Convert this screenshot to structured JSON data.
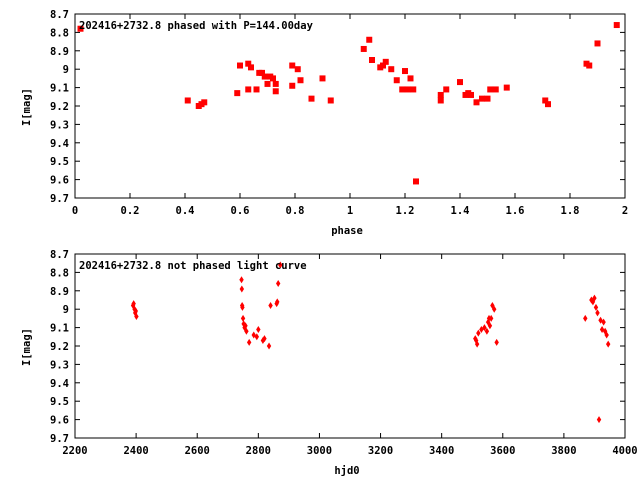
{
  "chart_data": [
    {
      "type": "scatter",
      "title": "202416+2732.8 phased with P=144.00day",
      "xlabel": "phase",
      "ylabel": "I[mag]",
      "xlim": [
        0,
        2
      ],
      "ylim": [
        8.7,
        9.7
      ],
      "y_inverted": true,
      "xticks": [
        "0",
        "0.2",
        "0.4",
        "0.6",
        "0.8",
        "1",
        "1.2",
        "1.4",
        "1.6",
        "1.8",
        "2"
      ],
      "yticks": [
        "8.7",
        "8.8",
        "8.9",
        "9",
        "9.1",
        "9.2",
        "9.3",
        "9.4",
        "9.5",
        "9.6",
        "9.7"
      ],
      "marker_color": "#ff0000",
      "marker": "square",
      "x": [
        0.02,
        0.41,
        0.45,
        0.46,
        0.47,
        0.59,
        0.6,
        0.63,
        0.63,
        0.64,
        0.66,
        0.67,
        0.68,
        0.69,
        0.7,
        0.71,
        0.72,
        0.73,
        0.73,
        0.79,
        0.79,
        0.81,
        0.82,
        0.86,
        0.9,
        0.93,
        1.05,
        1.07,
        1.08,
        1.11,
        1.12,
        1.13,
        1.15,
        1.17,
        1.19,
        1.2,
        1.21,
        1.22,
        1.23,
        1.24,
        1.33,
        1.33,
        1.35,
        1.4,
        1.42,
        1.43,
        1.44,
        1.46,
        1.48,
        1.5,
        1.51,
        1.53,
        1.57,
        1.71,
        1.72,
        1.86,
        1.87,
        1.9,
        1.97
      ],
      "y": [
        8.78,
        9.17,
        9.2,
        9.19,
        9.18,
        9.13,
        8.98,
        9.11,
        8.97,
        8.99,
        9.11,
        9.02,
        9.02,
        9.04,
        9.08,
        9.04,
        9.05,
        9.08,
        9.12,
        8.98,
        9.09,
        9.0,
        9.06,
        9.16,
        9.05,
        9.17,
        8.89,
        8.84,
        8.95,
        8.99,
        8.98,
        8.96,
        9.0,
        9.06,
        9.11,
        9.01,
        9.11,
        9.05,
        9.11,
        9.61,
        9.17,
        9.14,
        9.11,
        9.07,
        9.14,
        9.13,
        9.14,
        9.18,
        9.16,
        9.16,
        9.11,
        9.11,
        9.1,
        9.17,
        9.19,
        8.97,
        8.98,
        8.86,
        8.76
      ]
    },
    {
      "type": "scatter",
      "title": "202416+2732.8 not phased light curve",
      "xlabel": "hjd0",
      "ylabel": "I[mag]",
      "xlim": [
        2200,
        4000
      ],
      "ylim": [
        8.7,
        9.7
      ],
      "y_inverted": true,
      "xticks": [
        "2200",
        "2400",
        "2600",
        "2800",
        "3000",
        "3200",
        "3400",
        "3600",
        "3800",
        "4000"
      ],
      "yticks": [
        "8.7",
        "8.8",
        "8.9",
        "9",
        "9.1",
        "9.2",
        "9.3",
        "9.4",
        "9.5",
        "9.6",
        "9.7"
      ],
      "marker_color": "#ff0000",
      "marker": "diamond",
      "x": [
        2390,
        2392,
        2395,
        2397,
        2399,
        2401,
        2745,
        2746,
        2747,
        2748,
        2750,
        2752,
        2755,
        2758,
        2761,
        2770,
        2785,
        2795,
        2800,
        2815,
        2820,
        2835,
        2840,
        2860,
        2862,
        2865,
        2872,
        3510,
        3513,
        3516,
        3520,
        3530,
        3540,
        3548,
        3552,
        3555,
        3558,
        3562,
        3566,
        3572,
        3580,
        3870,
        3890,
        3895,
        3900,
        3905,
        3910,
        3915,
        3920,
        3925,
        3930,
        3935,
        3940,
        3945
      ],
      "y": [
        8.98,
        8.97,
        9.0,
        9.02,
        9.01,
        9.04,
        8.84,
        8.89,
        8.98,
        8.99,
        9.05,
        9.08,
        9.1,
        9.09,
        9.12,
        9.18,
        9.14,
        9.15,
        9.11,
        9.17,
        9.16,
        9.2,
        8.98,
        8.97,
        8.96,
        8.86,
        8.76,
        9.16,
        9.17,
        9.19,
        9.13,
        9.11,
        9.1,
        9.12,
        9.07,
        9.05,
        9.09,
        9.05,
        8.98,
        9.0,
        9.18,
        9.05,
        8.95,
        8.96,
        8.94,
        8.99,
        9.02,
        9.6,
        9.06,
        9.11,
        9.07,
        9.12,
        9.14,
        9.19
      ]
    }
  ]
}
